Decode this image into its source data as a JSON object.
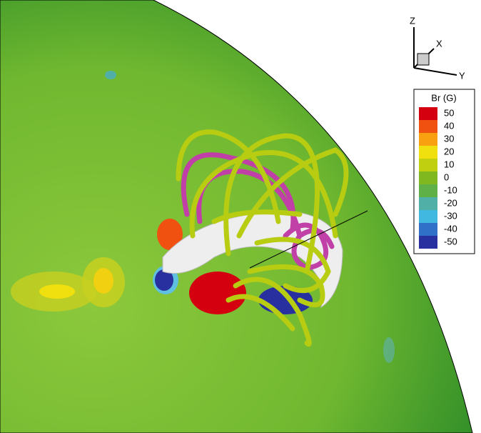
{
  "axes": {
    "z": "Z",
    "x": "X",
    "y": "Y"
  },
  "colorbar": {
    "title": "Br (G)",
    "levels": [
      {
        "value": 50,
        "color": "#d40010"
      },
      {
        "value": 40,
        "color": "#f05010"
      },
      {
        "value": 30,
        "color": "#f8a010"
      },
      {
        "value": 20,
        "color": "#f0e010"
      },
      {
        "value": 10,
        "color": "#c0d010"
      },
      {
        "value": 0,
        "color": "#80b820"
      },
      {
        "value": -10,
        "color": "#60b048"
      },
      {
        "value": -20,
        "color": "#50b0a8"
      },
      {
        "value": -30,
        "color": "#40b8e0"
      },
      {
        "value": -40,
        "color": "#3070c8"
      },
      {
        "value": -50,
        "color": "#2830a0"
      }
    ]
  }
}
